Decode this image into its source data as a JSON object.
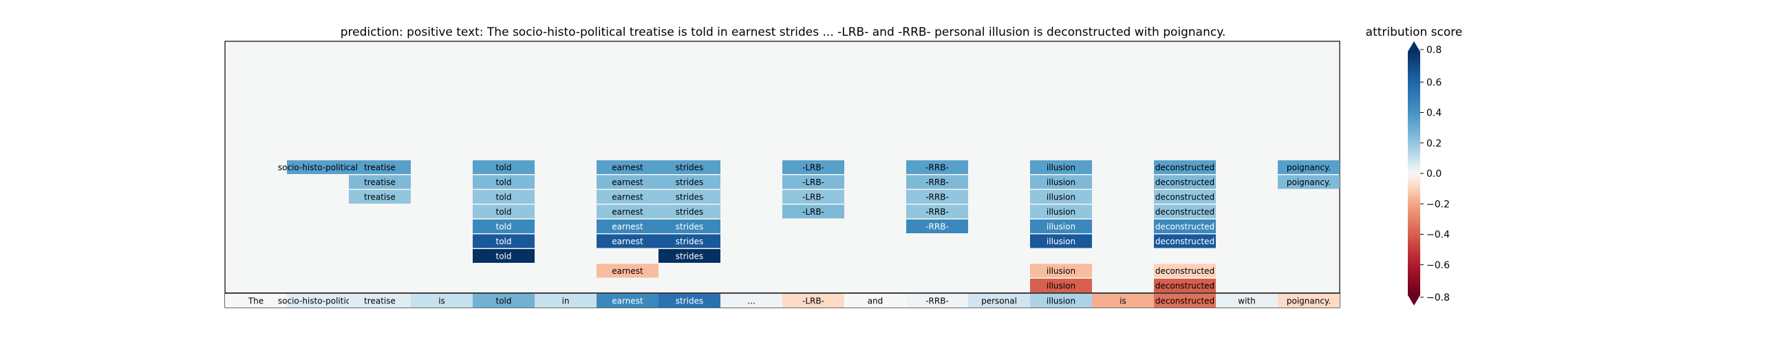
{
  "chart_data": {
    "type": "heatmap",
    "title": "prediction:  positive     text:  The socio-histo-political treatise is told in earnest strides ... -LRB- and -RRB- personal illusion is deconstructed with poignancy.",
    "tokens": [
      "The",
      "socio-histo-political",
      "treatise",
      "is",
      "told",
      "in",
      "earnest",
      "strides",
      "...",
      "-LRB-",
      "and",
      "-RRB-",
      "personal",
      "illusion",
      "is",
      "deconstructed",
      "with",
      "poignancy."
    ],
    "base_scores": [
      0.0,
      0.05,
      0.05,
      0.1,
      0.28,
      0.1,
      0.45,
      0.55,
      0.02,
      -0.08,
      0.0,
      0.02,
      0.08,
      0.15,
      -0.18,
      -0.35,
      0.03,
      -0.08
    ],
    "span_rows": [
      [
        {
          "start": 1,
          "end": 2,
          "score": 0.35
        },
        {
          "start": 4,
          "end": 4,
          "score": 0.35
        },
        {
          "start": 6,
          "end": 7,
          "score": 0.35
        },
        {
          "start": 9,
          "end": 9,
          "score": 0.35
        },
        {
          "start": 11,
          "end": 11,
          "score": 0.35
        },
        {
          "start": 13,
          "end": 13,
          "score": 0.35
        },
        {
          "start": 15,
          "end": 15,
          "score": 0.35
        },
        {
          "start": 17,
          "end": 17,
          "score": 0.35
        }
      ],
      [
        {
          "start": 2,
          "end": 2,
          "score": 0.25
        },
        {
          "start": 4,
          "end": 4,
          "score": 0.25
        },
        {
          "start": 6,
          "end": 7,
          "score": 0.25
        },
        {
          "start": 9,
          "end": 9,
          "score": 0.25
        },
        {
          "start": 11,
          "end": 11,
          "score": 0.25
        },
        {
          "start": 13,
          "end": 13,
          "score": 0.25
        },
        {
          "start": 15,
          "end": 15,
          "score": 0.25
        },
        {
          "start": 17,
          "end": 17,
          "score": 0.25
        }
      ],
      [
        {
          "start": 2,
          "end": 2,
          "score": 0.2
        },
        {
          "start": 4,
          "end": 4,
          "score": 0.2
        },
        {
          "start": 6,
          "end": 7,
          "score": 0.2
        },
        {
          "start": 9,
          "end": 9,
          "score": 0.2
        },
        {
          "start": 11,
          "end": 11,
          "score": 0.2
        },
        {
          "start": 13,
          "end": 13,
          "score": 0.2
        },
        {
          "start": 15,
          "end": 15,
          "score": 0.2
        }
      ],
      [
        {
          "start": 4,
          "end": 4,
          "score": 0.2
        },
        {
          "start": 6,
          "end": 7,
          "score": 0.2
        },
        {
          "start": 9,
          "end": 9,
          "score": 0.25
        },
        {
          "start": 11,
          "end": 11,
          "score": 0.2
        },
        {
          "start": 13,
          "end": 13,
          "score": 0.2
        },
        {
          "start": 15,
          "end": 15,
          "score": 0.2
        }
      ],
      [
        {
          "start": 4,
          "end": 4,
          "score": 0.45
        },
        {
          "start": 6,
          "end": 7,
          "score": 0.45
        },
        {
          "start": 11,
          "end": 11,
          "score": 0.45
        },
        {
          "start": 13,
          "end": 13,
          "score": 0.45
        },
        {
          "start": 15,
          "end": 15,
          "score": 0.45
        }
      ],
      [
        {
          "start": 4,
          "end": 4,
          "score": 0.65
        },
        {
          "start": 6,
          "end": 7,
          "score": 0.65
        },
        {
          "start": 13,
          "end": 13,
          "score": 0.65
        },
        {
          "start": 15,
          "end": 15,
          "score": 0.65
        }
      ],
      [
        {
          "start": 4,
          "end": 4,
          "score": 0.85
        },
        {
          "start": 7,
          "end": 7,
          "score": 0.85
        }
      ],
      [
        {
          "start": 6,
          "end": 6,
          "score": -0.15
        },
        {
          "start": 13,
          "end": 13,
          "score": -0.15
        },
        {
          "start": 15,
          "end": 15,
          "score": -0.1
        }
      ],
      [
        {
          "start": 13,
          "end": 13,
          "score": -0.4
        },
        {
          "start": 15,
          "end": 15,
          "score": -0.4
        }
      ]
    ],
    "colorbar": {
      "label": "attribution score",
      "min": -0.8,
      "max": 0.8,
      "ticks": [
        0.8,
        0.6,
        0.4,
        0.2,
        0.0,
        -0.2,
        -0.4,
        -0.6,
        -0.8
      ],
      "tick_labels": [
        "0.8",
        "0.6",
        "0.4",
        "0.2",
        "0.0",
        "−0.2",
        "−0.4",
        "−0.6",
        "−0.8"
      ]
    },
    "colormap": "RdBu"
  }
}
